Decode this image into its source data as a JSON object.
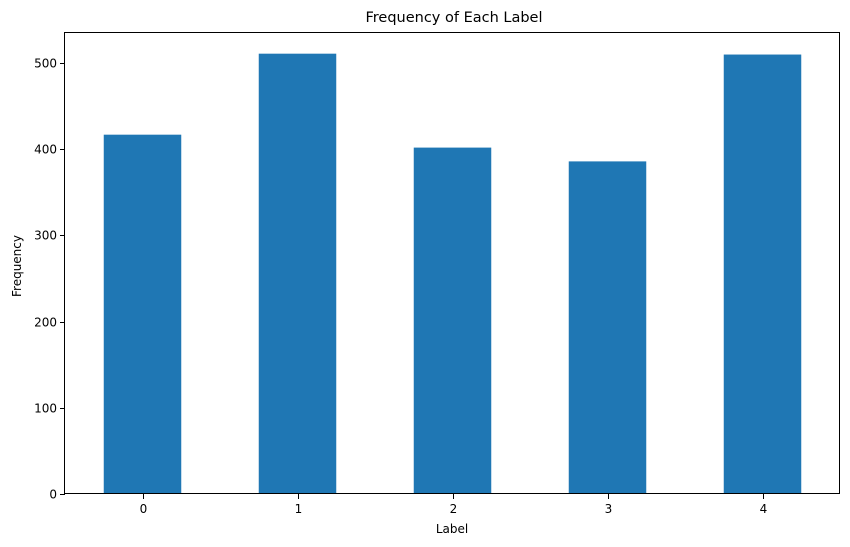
{
  "chart_data": {
    "type": "bar",
    "title": "Frequency of Each Label",
    "xlabel": "Label",
    "ylabel": "Frequency",
    "categories": [
      "0",
      "1",
      "2",
      "3",
      "4"
    ],
    "values": [
      417,
      511,
      402,
      386,
      510
    ],
    "ylim": [
      0,
      535
    ],
    "yticks": [
      0,
      100,
      200,
      300,
      400,
      500
    ],
    "grid": false,
    "bar_color": "#1f77b4"
  }
}
